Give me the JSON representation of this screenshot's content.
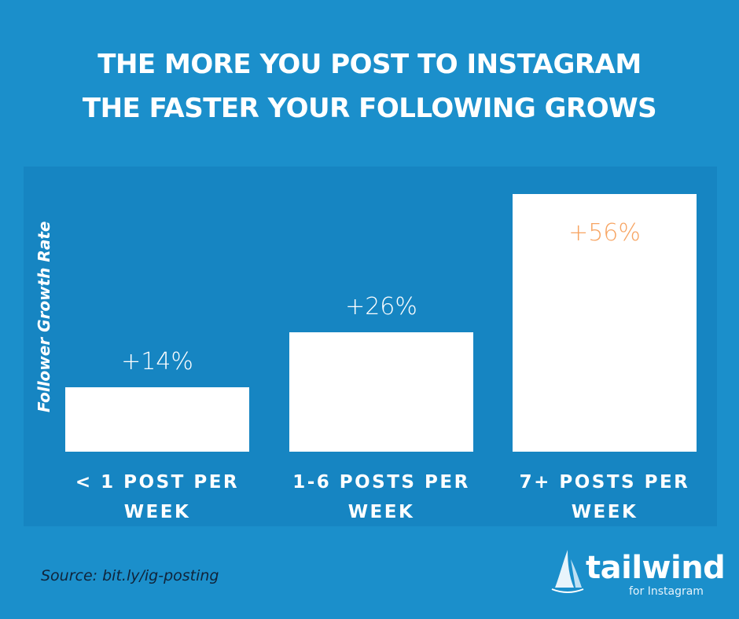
{
  "chart_data": {
    "type": "bar",
    "title": [
      "THE MORE YOU POST TO INSTAGRAM",
      "THE FASTER YOUR FOLLOWING GROWS"
    ],
    "y_label": "Follower Growth Rate",
    "categories": [
      "< 1 POST PER WEEK",
      "1-6 POSTS PER WEEK",
      "7+ POSTS PER WEEK"
    ],
    "values": [
      14,
      26,
      56
    ],
    "value_labels": [
      "+14%",
      "+26%",
      "+56%"
    ],
    "color": "#ffffff",
    "label_colors": [
      "#ffffff",
      "#ffffff",
      "#f7a462"
    ],
    "source": "Source: bit.ly/ig-posting"
  },
  "logo": {
    "name": "tailwind",
    "tagline": "for Instagram"
  }
}
